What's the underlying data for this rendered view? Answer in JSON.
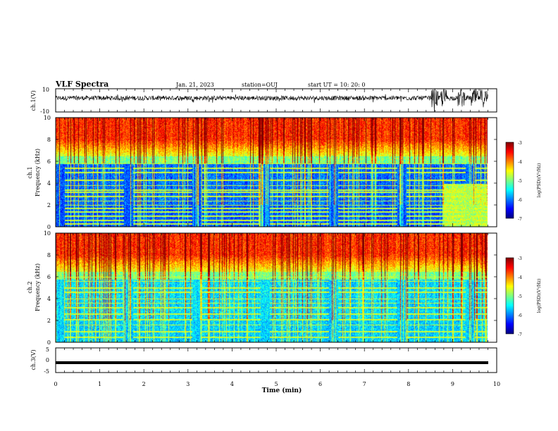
{
  "header": {
    "title": "VLF Spectra",
    "date": "Jan. 21, 2023",
    "station": "station=OUJ",
    "start": "start UT =  10: 20: 0"
  },
  "colors": {
    "colormap": [
      "#00007f",
      "#0000ff",
      "#007fff",
      "#00ffff",
      "#7fff7f",
      "#ffff00",
      "#ff7f00",
      "#ff0000",
      "#7f0000"
    ],
    "trace": "#000000",
    "background": "#ffffff"
  },
  "chart_data": [
    {
      "type": "line",
      "panel": "ch1-waveform",
      "ylabel": "ch.1(V)",
      "xlim": [
        0,
        10
      ],
      "ylim": [
        -10,
        10
      ],
      "yticks": [
        "10",
        "-10"
      ],
      "description_values": {
        "baseline_v": 2,
        "typical_amplitude_v": 2,
        "bursts_min": [
          8.6,
          8.8,
          9.2,
          9.5,
          9.7
        ]
      }
    },
    {
      "type": "heatmap",
      "panel": "ch1-spectrogram",
      "ylabel": "ch.1\nFrequency (kHz)",
      "xlim": [
        0,
        10
      ],
      "ylim": [
        0,
        10
      ],
      "yticks": [
        "0",
        "2",
        "4",
        "6",
        "8",
        "10"
      ],
      "colorbar": {
        "label": "log(PSD)(V²/Hz)",
        "range": [
          -7,
          -3
        ],
        "ticks": [
          "-3",
          "-4",
          "-5",
          "-6",
          "-7"
        ]
      },
      "lines_khz": [
        0.3,
        0.6,
        1.0,
        1.4,
        1.7,
        2.0,
        2.4,
        2.8,
        3.2,
        3.4,
        3.8,
        4.3,
        5.0,
        5.4,
        5.8
      ]
    },
    {
      "type": "heatmap",
      "panel": "ch2-spectrogram",
      "ylabel": "ch.2\nFrequency (kHz)",
      "xlim": [
        0,
        10
      ],
      "ylim": [
        0,
        10
      ],
      "yticks": [
        "0",
        "2",
        "4",
        "6",
        "8",
        "10"
      ],
      "colorbar": {
        "label": "log(PSD)(V²/Hz)",
        "range": [
          -7,
          -3
        ],
        "ticks": [
          "-3",
          "-4",
          "-5",
          "-6",
          "-7"
        ]
      },
      "lines_khz": [
        0.5,
        1.0,
        1.6,
        2.1,
        2.6,
        3.2,
        3.6,
        4.0,
        4.6,
        5.0,
        5.6,
        6.0
      ]
    },
    {
      "type": "line",
      "panel": "ch3-waveform",
      "ylabel": "ch.3(V)",
      "xlabel": "Time (min)",
      "xlim": [
        0,
        10
      ],
      "ylim": [
        -5,
        5
      ],
      "yticks": [
        "5",
        "0",
        "-5"
      ],
      "xticks": [
        "0",
        "1",
        "2",
        "3",
        "4",
        "5",
        "6",
        "7",
        "8",
        "9",
        "10"
      ],
      "constant_value_v": -1
    }
  ]
}
